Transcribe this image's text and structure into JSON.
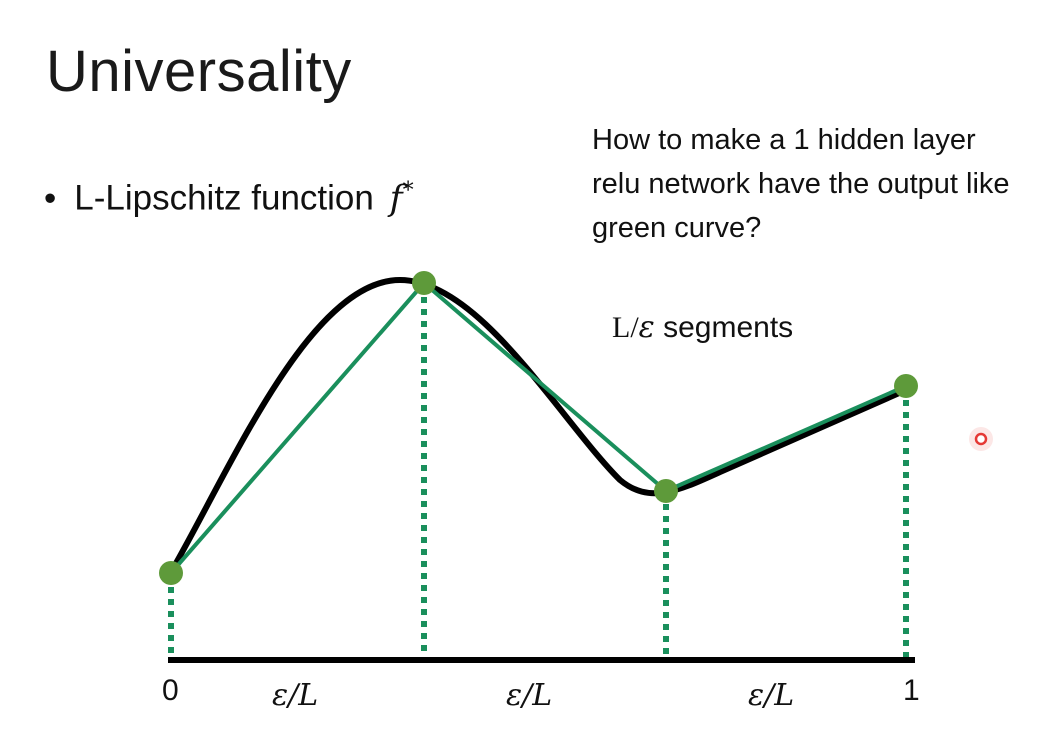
{
  "title": "Universality",
  "bullet": {
    "symbol": "•",
    "text": "L-Lipschitz function",
    "function_symbol": "f",
    "function_superscript": "*"
  },
  "question": "How to make a 1 hidden layer relu network have the output like green curve?",
  "segments_label": {
    "prefix": "L/",
    "epsilon": "ε",
    "suffix": " segments"
  },
  "axis": {
    "start_label": "0",
    "end_label": "1",
    "interval_labels": [
      "ε/L",
      "ε/L",
      "ε/L"
    ]
  },
  "colors": {
    "black_curve": "#000000",
    "green_line": "#1a8f5c",
    "points": "#5e9a3a",
    "guides": "#1a8f5c",
    "pointer": "#e53935"
  }
}
